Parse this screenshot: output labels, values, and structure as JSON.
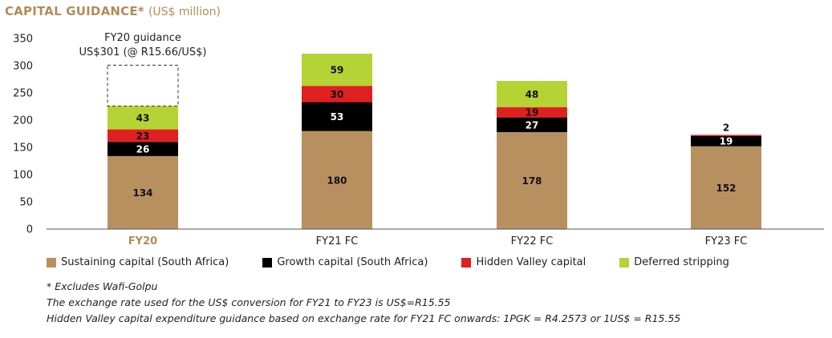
{
  "colors": {
    "title": "#b08d57",
    "sustaining": "#b89060",
    "growth": "#000000",
    "hidden_valley": "#e02020",
    "deferred": "#b5d334",
    "axis": "#555555",
    "highlight_label": "#b08d57"
  },
  "chart_data": {
    "type": "bar",
    "stacked": true,
    "title": "CAPITAL GUIDANCE*",
    "title_units": "(US$ million)",
    "categories": [
      "FY20",
      "FY21 FC",
      "FY22 FC",
      "FY23 FC"
    ],
    "highlight_category": "FY20",
    "series": [
      {
        "name": "Sustaining capital (South Africa)",
        "key": "sustaining",
        "values": [
          134,
          180,
          178,
          152
        ]
      },
      {
        "name": "Growth capital (South Africa)",
        "key": "growth",
        "values": [
          26,
          53,
          27,
          19
        ]
      },
      {
        "name": "Hidden Valley capital",
        "key": "hidden_valley",
        "values": [
          23,
          30,
          19,
          2
        ]
      },
      {
        "name": "Deferred stripping",
        "key": "deferred",
        "values": [
          43,
          59,
          48,
          0
        ]
      }
    ],
    "value_labels": [
      [
        "134",
        "26",
        "23",
        "43"
      ],
      [
        "180",
        "53",
        "30",
        "59"
      ],
      [
        "178",
        "27",
        "19",
        "48"
      ],
      [
        "152",
        "19",
        "2",
        ""
      ]
    ],
    "ylim": [
      0,
      350
    ],
    "yticks": [
      0,
      50,
      100,
      150,
      200,
      250,
      300,
      350
    ],
    "xlabel": "",
    "ylabel": "",
    "legend_position": "bottom",
    "annotation": {
      "category": "FY20",
      "total": 301,
      "line1": "FY20 guidance",
      "line2": "US$301 (@ R15.66/US$)"
    }
  },
  "notes": [
    "* Excludes Wafi-Golpu",
    "The exchange rate used for the US$ conversion for FY21 to FY23 is US$=R15.55",
    "Hidden Valley capital expenditure guidance based on exchange rate for FY21 FC onwards: 1PGK = R4.2573 or 1US$ = R15.55"
  ]
}
